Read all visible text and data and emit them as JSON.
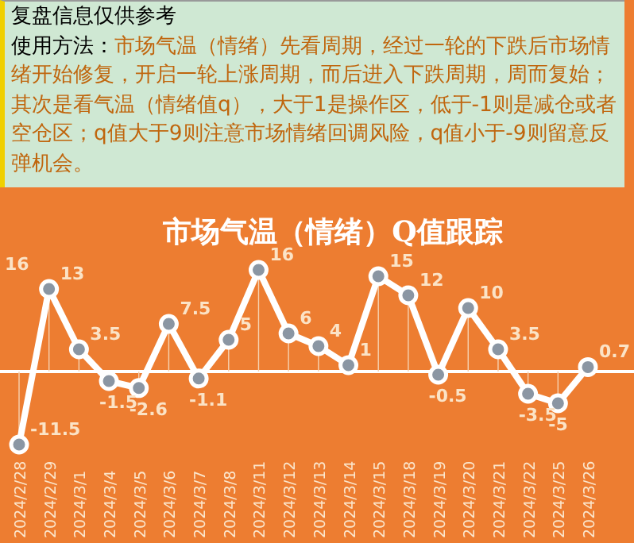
{
  "chart_data": {
    "type": "line",
    "title": "市场气温（情绪）Q值跟踪",
    "annotations": [
      "复盘信息仅供参考",
      "使用方法：",
      "市场气温（情绪）先看周期，经过一轮的下跌后市场情绪开始修复，开启一轮上涨周期，而后进入下跌周期，周而复始；其次是看气温（情绪值q），大于1是操作区，低于-1则是减仓或者空仓区；q值大于9则注意市场情绪回调风险，q值小于-9则留意反弹机会。",
      "16"
    ],
    "categories": [
      "2024/2/28",
      "2024/2/29",
      "2024/3/1",
      "2024/3/4",
      "2024/3/5",
      "2024/3/6",
      "2024/3/7",
      "2024/3/8",
      "2024/3/11",
      "2024/3/12",
      "2024/3/13",
      "2024/3/14",
      "2024/3/15",
      "2024/3/18",
      "2024/3/19",
      "2024/3/20",
      "2024/3/21",
      "2024/3/22",
      "2024/3/25",
      "2024/3/26"
    ],
    "series": [
      {
        "color": "#ffffff",
        "values": [
          -11.5,
          13,
          3.5,
          -1.5,
          -2.6,
          7.5,
          -1.1,
          5,
          16,
          6,
          4,
          1,
          15,
          12,
          -0.5,
          10,
          3.5,
          -3.5,
          -5,
          0.7
        ]
      }
    ],
    "data_labels": true,
    "marker": "circle",
    "line_style": "solid"
  }
}
